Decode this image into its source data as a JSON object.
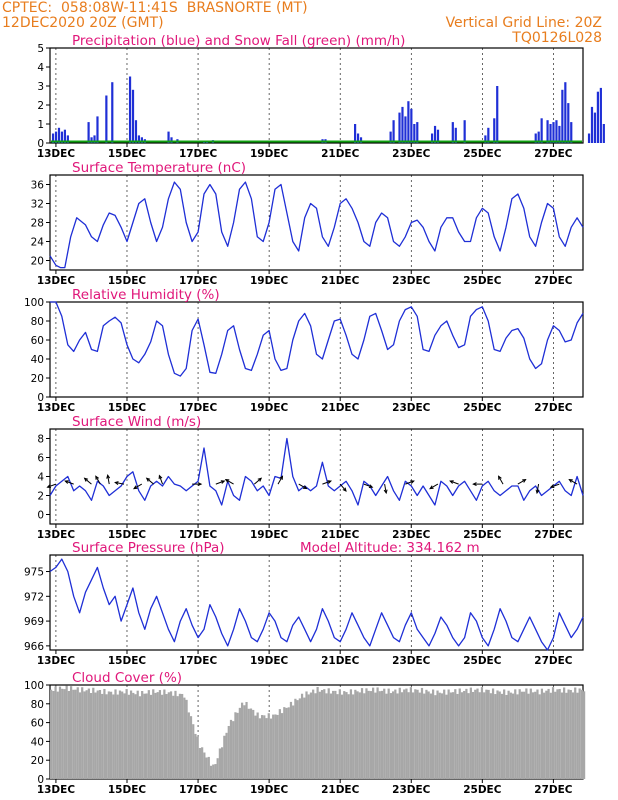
{
  "header": {
    "line1": "CPTEC:  058:08W-11:41S  BRASNORTE (MT)",
    "line2": "12DEC2020 20Z (GMT)",
    "vgrid": "Vertical Grid Line: 20Z",
    "code": "TQ0126L028"
  },
  "colors": {
    "accent": "#e87d1e",
    "title": "#e0177a",
    "series": "#1f2fd6",
    "snow": "#10a010",
    "cloud": "#a7a7a7"
  },
  "x_axis": {
    "start": "12DEC2020 20Z",
    "end": "27DEC2020 20Z",
    "tick_labels": [
      "13DEC",
      "15DEC",
      "17DEC",
      "19DEC",
      "21DEC",
      "23DEC",
      "25DEC",
      "27DEC"
    ]
  },
  "chart_data": [
    {
      "id": "precip",
      "type": "bar",
      "title": "Precipitation (blue) and Snow Fall (green) (mm/h)",
      "ylim": [
        0,
        5
      ],
      "yticks": [
        0,
        1,
        2,
        3,
        4,
        5
      ],
      "series": [
        {
          "name": "Precipitation",
          "color": "#1f2fd6",
          "x_hours": [
            2,
            4,
            6,
            8,
            10,
            12,
            26,
            28,
            30,
            32,
            38,
            42,
            54,
            56,
            58,
            60,
            62,
            64,
            80,
            82,
            86,
            104,
            106,
            110,
            184,
            186,
            206,
            208,
            210,
            230,
            232,
            236,
            238,
            240,
            242,
            244,
            246,
            248,
            258,
            260,
            262,
            272,
            274,
            280,
            294,
            296,
            300,
            302,
            328,
            330,
            332,
            336,
            338,
            340,
            342,
            344,
            346,
            348,
            350,
            352,
            364,
            366,
            368,
            370,
            372,
            374
          ],
          "values": [
            0.5,
            0.6,
            0.8,
            0.6,
            0.7,
            0.4,
            1.1,
            0.3,
            0.4,
            1.4,
            2.5,
            3.2,
            3.5,
            2.8,
            1.2,
            0.4,
            0.3,
            0.2,
            0.6,
            0.3,
            0.2,
            0.1,
            0.1,
            0.15,
            0.2,
            0.2,
            1.0,
            0.5,
            0.3,
            0.6,
            1.2,
            1.6,
            1.9,
            1.4,
            2.2,
            1.8,
            1.0,
            1.1,
            0.5,
            0.9,
            0.7,
            1.1,
            0.8,
            1.2,
            0.4,
            0.8,
            1.3,
            3.0,
            0.5,
            0.6,
            1.3,
            1.2,
            1.0,
            1.1,
            1.2,
            0.9,
            2.8,
            3.2,
            2.1,
            1.1,
            0.5,
            1.9,
            1.6,
            2.7,
            2.9,
            1.0
          ]
        },
        {
          "name": "Snow Fall",
          "color": "#10a010",
          "values_constant": 0
        }
      ]
    },
    {
      "id": "temp",
      "type": "line",
      "title": "Surface Temperature (nC)",
      "ylim": [
        18,
        38
      ],
      "yticks": [
        20,
        24,
        28,
        32,
        36
      ],
      "series": [
        {
          "name": "Surface Temperature",
          "color": "#1f2fd6",
          "x_hours": [
            0,
            4,
            7,
            10,
            14,
            18,
            24,
            28,
            32,
            36,
            40,
            44,
            48,
            52,
            56,
            60,
            64,
            68,
            72,
            76,
            80,
            84,
            88,
            92,
            96,
            100,
            104,
            108,
            112,
            116,
            120,
            124,
            128,
            132,
            136,
            140,
            144,
            148,
            152,
            156,
            160,
            164,
            168,
            172,
            176,
            180,
            184,
            188,
            192,
            196,
            200,
            204,
            208,
            212,
            216,
            220,
            224,
            228,
            232,
            236,
            240,
            244,
            248,
            252,
            256,
            260,
            264,
            268,
            272,
            276,
            280,
            284,
            288,
            292,
            296,
            300,
            304,
            308,
            312,
            316,
            320,
            324,
            328,
            332,
            336,
            340,
            344,
            348,
            352,
            356,
            360
          ],
          "values": [
            21,
            19,
            18.5,
            18.5,
            25,
            29,
            27.5,
            25,
            24,
            27.5,
            30,
            29.5,
            27,
            24,
            28,
            32,
            33,
            28,
            24,
            27,
            33,
            36.5,
            35,
            28,
            24,
            26,
            34,
            36,
            34,
            26,
            23,
            28,
            35,
            36.5,
            33,
            25,
            24,
            28,
            35,
            36,
            30,
            24,
            22,
            29,
            32,
            31,
            25,
            23,
            27,
            32,
            33,
            31,
            28,
            24,
            23,
            28,
            30,
            29,
            24,
            23,
            25,
            28,
            28.5,
            27,
            24,
            22,
            27,
            29,
            29,
            26,
            24,
            24,
            29,
            31,
            30,
            25,
            22,
            27,
            33,
            34,
            31,
            25,
            23,
            28,
            32,
            31,
            25,
            23,
            27,
            29,
            27
          ]
        }
      ]
    },
    {
      "id": "rh",
      "type": "line",
      "title": "Relative Humidity (%)",
      "ylim": [
        0,
        100
      ],
      "yticks": [
        0,
        20,
        40,
        60,
        80,
        100
      ],
      "series": [
        {
          "name": "Relative Humidity",
          "color": "#1f2fd6",
          "x_hours": [
            0,
            4,
            8,
            12,
            16,
            20,
            24,
            28,
            32,
            36,
            40,
            44,
            48,
            52,
            56,
            60,
            64,
            68,
            72,
            76,
            80,
            84,
            88,
            92,
            96,
            100,
            104,
            108,
            112,
            116,
            120,
            124,
            128,
            132,
            136,
            140,
            144,
            148,
            152,
            156,
            160,
            164,
            168,
            172,
            176,
            180,
            184,
            188,
            192,
            196,
            200,
            204,
            208,
            212,
            216,
            220,
            224,
            228,
            232,
            236,
            240,
            244,
            248,
            252,
            256,
            260,
            264,
            268,
            272,
            276,
            280,
            284,
            288,
            292,
            296,
            300,
            304,
            308,
            312,
            316,
            320,
            324,
            328,
            332,
            336,
            340,
            344,
            348,
            352,
            356,
            360
          ],
          "values": [
            100,
            100,
            85,
            55,
            48,
            60,
            68,
            50,
            48,
            75,
            80,
            84,
            78,
            55,
            40,
            36,
            45,
            58,
            80,
            75,
            45,
            25,
            22,
            30,
            70,
            82,
            55,
            26,
            25,
            45,
            70,
            75,
            50,
            30,
            28,
            45,
            65,
            70,
            40,
            28,
            30,
            60,
            80,
            88,
            75,
            45,
            40,
            60,
            80,
            82,
            65,
            45,
            40,
            60,
            85,
            88,
            70,
            50,
            55,
            80,
            92,
            95,
            85,
            50,
            48,
            65,
            75,
            80,
            65,
            52,
            55,
            85,
            92,
            95,
            80,
            50,
            48,
            62,
            70,
            72,
            62,
            40,
            30,
            35,
            60,
            75,
            70,
            58,
            60,
            78,
            88
          ]
        }
      ]
    },
    {
      "id": "wind",
      "type": "line",
      "title": "Surface Wind (m/s)",
      "ylim": [
        -1,
        9
      ],
      "yticks": [
        0,
        2,
        4,
        6,
        8
      ],
      "series": [
        {
          "name": "Surface Wind",
          "color": "#1f2fd6",
          "x_hours": [
            0,
            4,
            8,
            12,
            16,
            20,
            24,
            28,
            32,
            36,
            40,
            44,
            48,
            52,
            56,
            60,
            64,
            68,
            72,
            76,
            80,
            84,
            88,
            92,
            96,
            100,
            104,
            108,
            112,
            116,
            120,
            124,
            128,
            132,
            136,
            140,
            144,
            148,
            152,
            156,
            160,
            164,
            168,
            172,
            176,
            180,
            184,
            188,
            192,
            196,
            200,
            204,
            208,
            212,
            216,
            220,
            224,
            228,
            232,
            236,
            240,
            244,
            248,
            252,
            256,
            260,
            264,
            268,
            272,
            276,
            280,
            284,
            288,
            292,
            296,
            300,
            304,
            308,
            312,
            316,
            320,
            324,
            328,
            332,
            336,
            340,
            344,
            348,
            352,
            356,
            360
          ],
          "values": [
            2,
            3,
            3.5,
            4,
            2.5,
            3,
            2.5,
            1.5,
            3.5,
            3,
            2,
            2.5,
            3,
            4,
            4.5,
            2.5,
            1.5,
            3,
            3.5,
            3,
            4,
            3.2,
            3,
            2.5,
            3,
            3.5,
            7,
            3,
            2.5,
            1,
            3.5,
            2,
            1.5,
            4,
            3.5,
            2.5,
            3,
            2,
            4,
            3.8,
            8,
            4,
            2.5,
            3,
            2.5,
            3,
            5.5,
            3,
            2.5,
            3,
            3.5,
            2.5,
            1,
            3.5,
            3,
            2,
            3,
            4,
            2.5,
            1.5,
            3.5,
            3,
            2,
            3,
            2,
            1,
            3.5,
            3,
            2,
            3,
            3.5,
            2.5,
            1.5,
            3,
            3.5,
            2.5,
            2,
            2.5,
            3,
            3,
            1.5,
            2.5,
            3,
            2,
            2.5,
            3,
            3.5,
            2.5,
            2,
            4,
            2
          ]
        }
      ]
    },
    {
      "id": "pressure",
      "type": "line",
      "title": "Surface Pressure (hPa)",
      "subtitle": "Model Altitude: 334.162 m",
      "ylim": [
        965.5,
        977
      ],
      "yticks": [
        966,
        969,
        972,
        975
      ],
      "series": [
        {
          "name": "Surface Pressure",
          "color": "#1f2fd6",
          "x_hours": [
            0,
            4,
            8,
            12,
            16,
            20,
            24,
            28,
            32,
            36,
            40,
            44,
            48,
            52,
            56,
            60,
            64,
            68,
            72,
            76,
            80,
            84,
            88,
            92,
            96,
            100,
            104,
            108,
            112,
            116,
            120,
            124,
            128,
            132,
            136,
            140,
            144,
            148,
            152,
            156,
            160,
            164,
            168,
            172,
            176,
            180,
            184,
            188,
            192,
            196,
            200,
            204,
            208,
            212,
            216,
            220,
            224,
            228,
            232,
            236,
            240,
            244,
            248,
            252,
            256,
            260,
            264,
            268,
            272,
            276,
            280,
            284,
            288,
            292,
            296,
            300,
            304,
            308,
            312,
            316,
            320,
            324,
            328,
            332,
            336,
            340,
            344,
            348,
            352,
            356,
            360
          ],
          "values": [
            975,
            975.5,
            976.5,
            975,
            972,
            970,
            972.5,
            974,
            975.5,
            973,
            971,
            972,
            969,
            971,
            973,
            970,
            968,
            970.5,
            972,
            970,
            968,
            966.5,
            969,
            970.5,
            968.5,
            967,
            968,
            971,
            969.5,
            967.5,
            966,
            968,
            970.5,
            969,
            967,
            966.5,
            968,
            970,
            969,
            967,
            966.5,
            968.5,
            969.5,
            968,
            966.5,
            968,
            970.5,
            969,
            967,
            966.5,
            968,
            970,
            968.5,
            967,
            966,
            968,
            970,
            968.5,
            967,
            966.5,
            968.5,
            970,
            968,
            967,
            966,
            967.5,
            969.5,
            968.5,
            967,
            966,
            967,
            970,
            969,
            967,
            966,
            968,
            970.5,
            969,
            967,
            966.5,
            968,
            969.5,
            968,
            966.5,
            965.5,
            967,
            970,
            968.5,
            967,
            968,
            969.5
          ]
        }
      ]
    },
    {
      "id": "cloud",
      "type": "bar",
      "title": "Cloud Cover (%)",
      "ylim": [
        0,
        100
      ],
      "yticks": [
        0,
        20,
        40,
        60,
        80,
        100
      ],
      "series": [
        {
          "name": "Cloud Cover",
          "color": "#a7a7a7",
          "x_hours": [
            0,
            10,
            20,
            30,
            40,
            50,
            60,
            70,
            80,
            90,
            100,
            110,
            120,
            130,
            140,
            150,
            160,
            170,
            180,
            190,
            200,
            210,
            220,
            230,
            240,
            250,
            260,
            270,
            280,
            290,
            300,
            310,
            320,
            330,
            340,
            350,
            360
          ],
          "values": [
            98,
            100,
            98,
            97,
            95,
            96,
            94,
            96,
            95,
            92,
            40,
            15,
            60,
            85,
            70,
            70,
            80,
            92,
            98,
            96,
            95,
            97,
            98,
            96,
            98,
            97,
            95,
            96,
            97,
            98,
            96,
            95,
            97,
            96,
            98,
            97,
            98
          ]
        }
      ]
    }
  ]
}
